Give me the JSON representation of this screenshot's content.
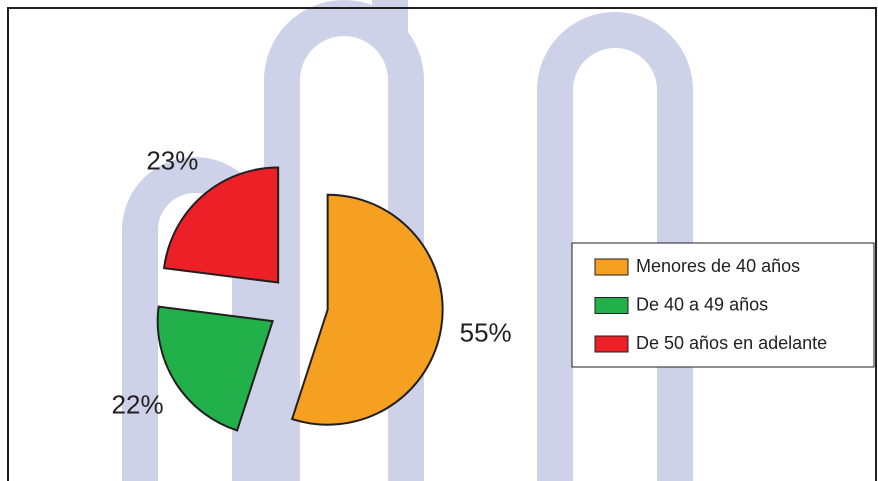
{
  "chart_data": {
    "type": "pie",
    "categories": [
      "Menores de 40 años",
      "De 40 a 49 años",
      "De 50 años en adelante"
    ],
    "values": [
      55,
      22,
      23
    ],
    "value_labels": [
      "55%",
      "22%",
      "23%"
    ],
    "colors": [
      "#f5a020",
      "#22b04a",
      "#ee2027"
    ],
    "legend": "right"
  }
}
